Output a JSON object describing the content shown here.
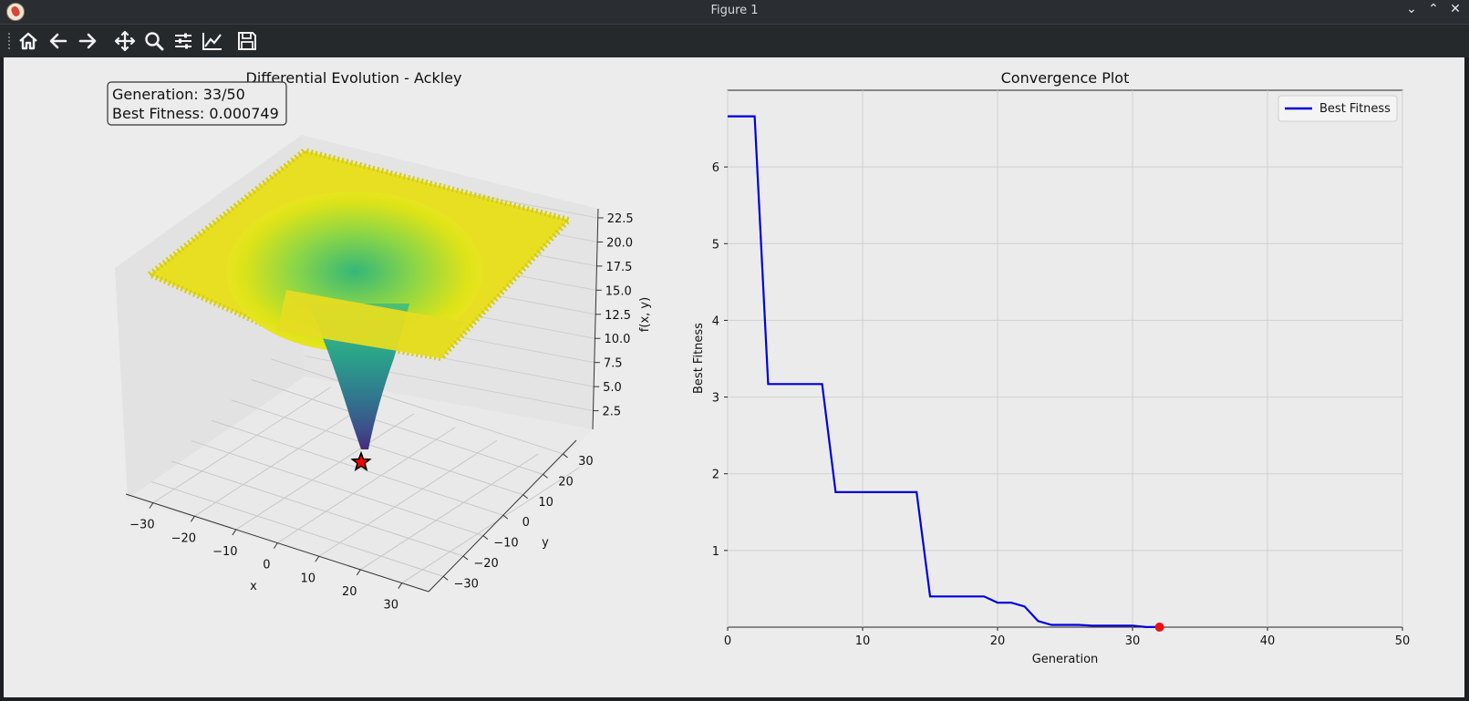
{
  "window": {
    "title": "Figure 1"
  },
  "window_buttons": [
    "minimize-icon",
    "maximize-icon",
    "close-icon"
  ],
  "toolbar": {
    "buttons": [
      {
        "icon": "home-icon",
        "label": "Home"
      },
      {
        "icon": "back-arrow-icon",
        "label": "Back"
      },
      {
        "icon": "forward-arrow-icon",
        "label": "Forward"
      },
      {
        "icon": "pan-icon",
        "label": "Pan"
      },
      {
        "icon": "zoom-icon",
        "label": "Zoom"
      },
      {
        "icon": "configure-subplots-icon",
        "label": "Subplots"
      },
      {
        "icon": "edit-axis-icon",
        "label": "Customize"
      },
      {
        "icon": "save-icon",
        "label": "Save"
      }
    ]
  },
  "chart_data": [
    {
      "type": "surface",
      "title": "Differential Evolution - Ackley",
      "annotation": {
        "line1": "Generation: 33/50",
        "line2": "Best Fitness: 0.000749"
      },
      "xlabel": "x",
      "ylabel": "y",
      "zlabel": "f(x, y)",
      "x_ticks": [
        "−30",
        "−20",
        "−10",
        "0",
        "10",
        "20",
        "30"
      ],
      "y_ticks": [
        "−30",
        "−20",
        "−10",
        "0",
        "10",
        "20",
        "30"
      ],
      "z_ticks": [
        "2.5",
        "5.0",
        "7.5",
        "10.0",
        "12.5",
        "15.0",
        "17.5",
        "20.0",
        "22.5"
      ],
      "xlim": [
        -32,
        32
      ],
      "ylim": [
        -32,
        32
      ],
      "zlim": [
        0,
        22.5
      ],
      "colormap": "viridis",
      "best_marker": {
        "x": 0,
        "y": 0,
        "z": 0,
        "color": "#ff0000"
      }
    },
    {
      "type": "line",
      "title": "Convergence Plot",
      "xlabel": "Generation",
      "ylabel": "Best Fitness",
      "xlim": [
        0,
        50
      ],
      "ylim": [
        0,
        7
      ],
      "x_ticks": [
        0,
        10,
        20,
        30,
        40,
        50
      ],
      "y_ticks": [
        1,
        2,
        3,
        4,
        5,
        6
      ],
      "grid": true,
      "legend": "top-right",
      "series": [
        {
          "name": "Best Fitness",
          "color": "#0000dd",
          "x": [
            0,
            1,
            2,
            3,
            4,
            5,
            6,
            7,
            8,
            9,
            10,
            11,
            12,
            13,
            14,
            15,
            16,
            17,
            18,
            19,
            20,
            21,
            22,
            23,
            24,
            25,
            26,
            27,
            28,
            29,
            30,
            31,
            32
          ],
          "y": [
            6.66,
            6.66,
            6.66,
            3.17,
            3.17,
            3.17,
            3.17,
            3.17,
            1.76,
            1.76,
            1.76,
            1.76,
            1.76,
            1.76,
            1.76,
            0.4,
            0.4,
            0.4,
            0.4,
            0.4,
            0.32,
            0.32,
            0.27,
            0.08,
            0.03,
            0.03,
            0.03,
            0.02,
            0.02,
            0.02,
            0.02,
            0.001,
            0.000749
          ]
        }
      ],
      "current_point": {
        "x": 32,
        "y": 0.000749,
        "color": "#ee1111"
      }
    }
  ]
}
